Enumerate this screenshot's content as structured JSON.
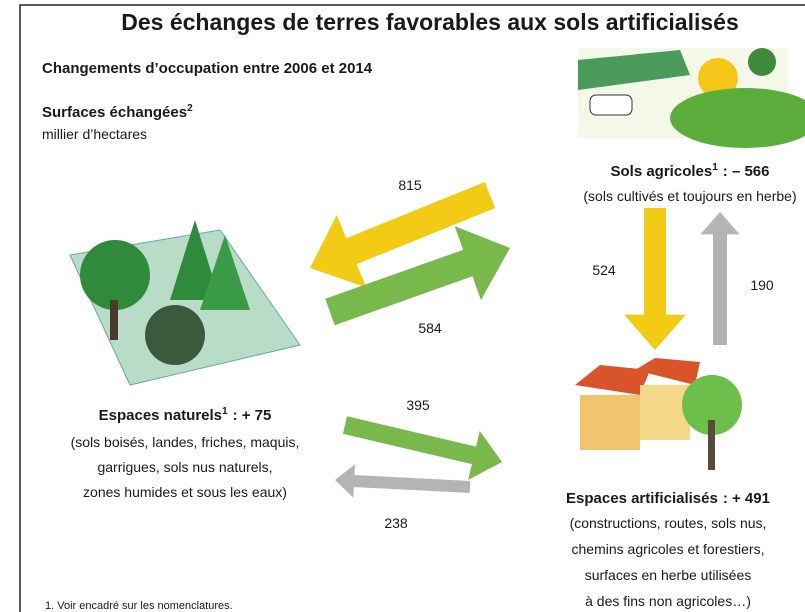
{
  "header": {
    "title": "Des échanges de terres favorables aux sols artificialisés",
    "subtitle": "Changements d’occupation entre 2006 et 2014",
    "measure": {
      "label": "Surfaces échangées",
      "note": "2",
      "unit": "millier d’hectares"
    }
  },
  "nodes": [
    {
      "label": "Sols agricoles",
      "note": "1",
      "change": ": – 566",
      "description": [
        "(sols cultivés et toujours en herbe)"
      ]
    },
    {
      "label": "Espaces naturels",
      "note": "1",
      "change": ": + 75",
      "description": [
        "(sols boisés, landes, friches, maquis,",
        "garrigues, sols nus naturels,",
        "zones humides et sous les eaux)"
      ]
    },
    {
      "label": "Espaces artificialisés",
      "change": ": + 491",
      "description": [
        "(constructions, routes, sols nus,",
        "chemins agricoles et forestiers,",
        "surfaces en herbe utilisées",
        "à des fins non agricoles…)"
      ]
    }
  ],
  "flows": [
    {
      "value": 815
    },
    {
      "value": 584
    },
    {
      "value": 524
    },
    {
      "value": 190
    },
    {
      "value": 395
    },
    {
      "value": 238
    }
  ],
  "footnote": "1. Voir encadré sur les nomenclatures."
}
